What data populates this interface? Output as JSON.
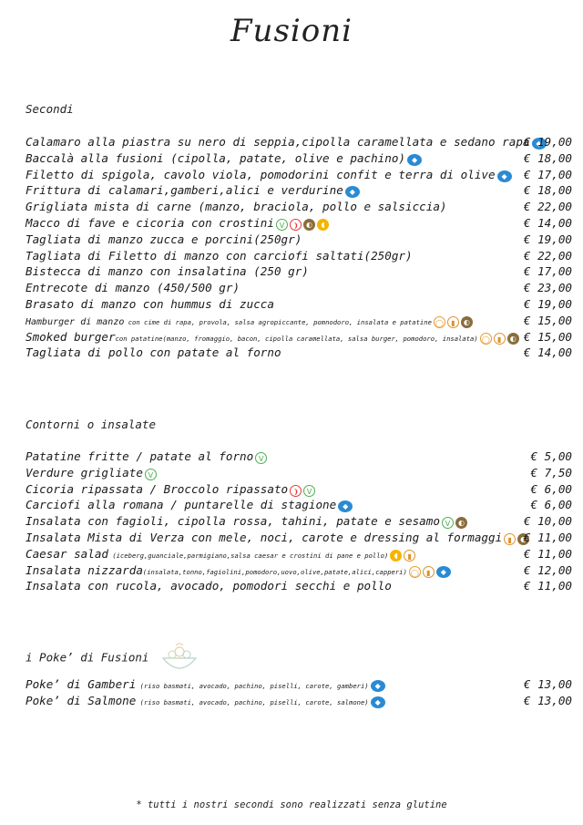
{
  "logo": "Fusioni",
  "sections": {
    "secondi": {
      "title": "Secondi",
      "items": [
        {
          "name": "Calamaro alla piastra su nero di seppia,cipolla caramellata e sedano rapa",
          "desc": "",
          "icons": [
            "fish"
          ],
          "price": "€ 19,00"
        },
        {
          "name": "Baccalà alla fusioni (cipolla, patate, olive e pachino)",
          "desc": "",
          "icons": [
            "fish"
          ],
          "price": "€ 18,00"
        },
        {
          "name": "Filetto di spigola, cavolo viola, pomodorini confit e terra di olive",
          "desc": "",
          "icons": [
            "fish"
          ],
          "price": "€ 17,00"
        },
        {
          "name": "Frittura di calamari,gamberi,alici e verdurine",
          "desc": "",
          "icons": [
            "fish"
          ],
          "price": "€ 18,00"
        },
        {
          "name": "Grigliata mista di carne (manzo, braciola, pollo e salsiccia)",
          "desc": "",
          "icons": [],
          "price": "€ 22,00"
        },
        {
          "name": "Macco di fave e cicoria con crostini",
          "desc": "",
          "icons": [
            "veg",
            "chili",
            "mustard",
            "lactose"
          ],
          "price": "€ 14,00"
        },
        {
          "name": "Tagliata di manzo zucca e porcini(250gr)",
          "desc": "",
          "icons": [],
          "price": "€ 19,00"
        },
        {
          "name": "Tagliata di Filetto di manzo con carciofi saltati(250gr)",
          "desc": "",
          "icons": [],
          "price": "€ 22,00"
        },
        {
          "name": "Bistecca di manzo con insalatina (250 gr)",
          "desc": "",
          "icons": [],
          "price": "€ 17,00"
        },
        {
          "name": "Entrecote di manzo (450/500 gr)",
          "desc": "",
          "icons": [],
          "price": "€ 23,00"
        },
        {
          "name": "Brasato di manzo con hummus di zucca",
          "desc": "",
          "icons": [],
          "price": "€ 19,00"
        },
        {
          "name": "Hamburger di manzo",
          "desc": " con cime di rapa, provola, salsa agropiccante, pomnodoro, insalata e patatine",
          "icons": [
            "egg",
            "dairy",
            "mustard"
          ],
          "small": true,
          "price": "€ 15,00"
        },
        {
          "name": "Smoked burger",
          "desc": "con patatine(manzo, fromaggio, bacon, cipolla caramellata, salsa burger, pomodoro, insalata)",
          "icons": [
            "egg",
            "dairy",
            "mustard"
          ],
          "price": "€ 15,00"
        },
        {
          "name": "Tagliata di pollo con patate al forno",
          "desc": "",
          "icons": [],
          "price": "€ 14,00"
        }
      ]
    },
    "contorni": {
      "title": "Contorni o insalate",
      "items": [
        {
          "name": "Patatine fritte / patate al forno",
          "desc": "",
          "icons": [
            "veg"
          ],
          "price": "€ 5,00"
        },
        {
          "name": "Verdure grigliate",
          "desc": "",
          "icons": [
            "veg"
          ],
          "price": "€ 7,50"
        },
        {
          "name": "Cicoria ripassata / Broccolo ripassato",
          "desc": "",
          "icons": [
            "chili",
            "veg"
          ],
          "price": "€ 6,00"
        },
        {
          "name": "Carciofi alla romana / puntarelle di stagione",
          "desc": "",
          "icons": [
            "fish"
          ],
          "price": "€ 6,00"
        },
        {
          "name": "Insalata con fagioli, cipolla rossa, tahini, patate e sesamo",
          "desc": "",
          "icons": [
            "veg",
            "mustard"
          ],
          "price": "€ 10,00"
        },
        {
          "name": "Insalata Mista di Verza con mele, noci, carote e dressing al formaggi",
          "desc": "",
          "icons": [
            "dairy",
            "mustard"
          ],
          "price": "€ 11,00"
        },
        {
          "name": "Caesar salad",
          "desc": " (iceberg,guanciale,parmigiano,salsa caesar e crostini di pane  e pollo)",
          "icons": [
            "lactose",
            "dairy"
          ],
          "price": "€ 11,00"
        },
        {
          "name": "Insalata nizzarda",
          "desc": "(insalata,tonno,fagiolini,pomodoro,uovo,olive,patate,alici,capperi)",
          "icons": [
            "egg",
            "dairy",
            "fish"
          ],
          "price": "€ 12,00"
        },
        {
          "name": "Insalata con rucola, avocado, pomodori secchi e pollo",
          "desc": "",
          "icons": [],
          "price": "€ 11,00"
        }
      ]
    },
    "poke": {
      "title": "i Poke’ di Fusioni",
      "items": [
        {
          "name": "Poke’ di Gamberi",
          "desc": " (riso basmati, avocado, pachino, piselli, carote, gamberi)",
          "icons": [
            "fish"
          ],
          "price": "€ 13,00"
        },
        {
          "name": "Poke’ di Salmone",
          "desc": " (riso basmati, avocado, pachino, piselli, carote, salmone)",
          "icons": [
            "fish"
          ],
          "price": "€ 13,00"
        }
      ]
    }
  },
  "footer": "* tutti i nostri secondi sono realizzati senza glutine",
  "icon_glyphs": {
    "fish": "◆",
    "veg": "V",
    "chili": "❩",
    "mustard": "◐",
    "lactose": "◖",
    "egg": "◯",
    "dairy": "▮"
  }
}
